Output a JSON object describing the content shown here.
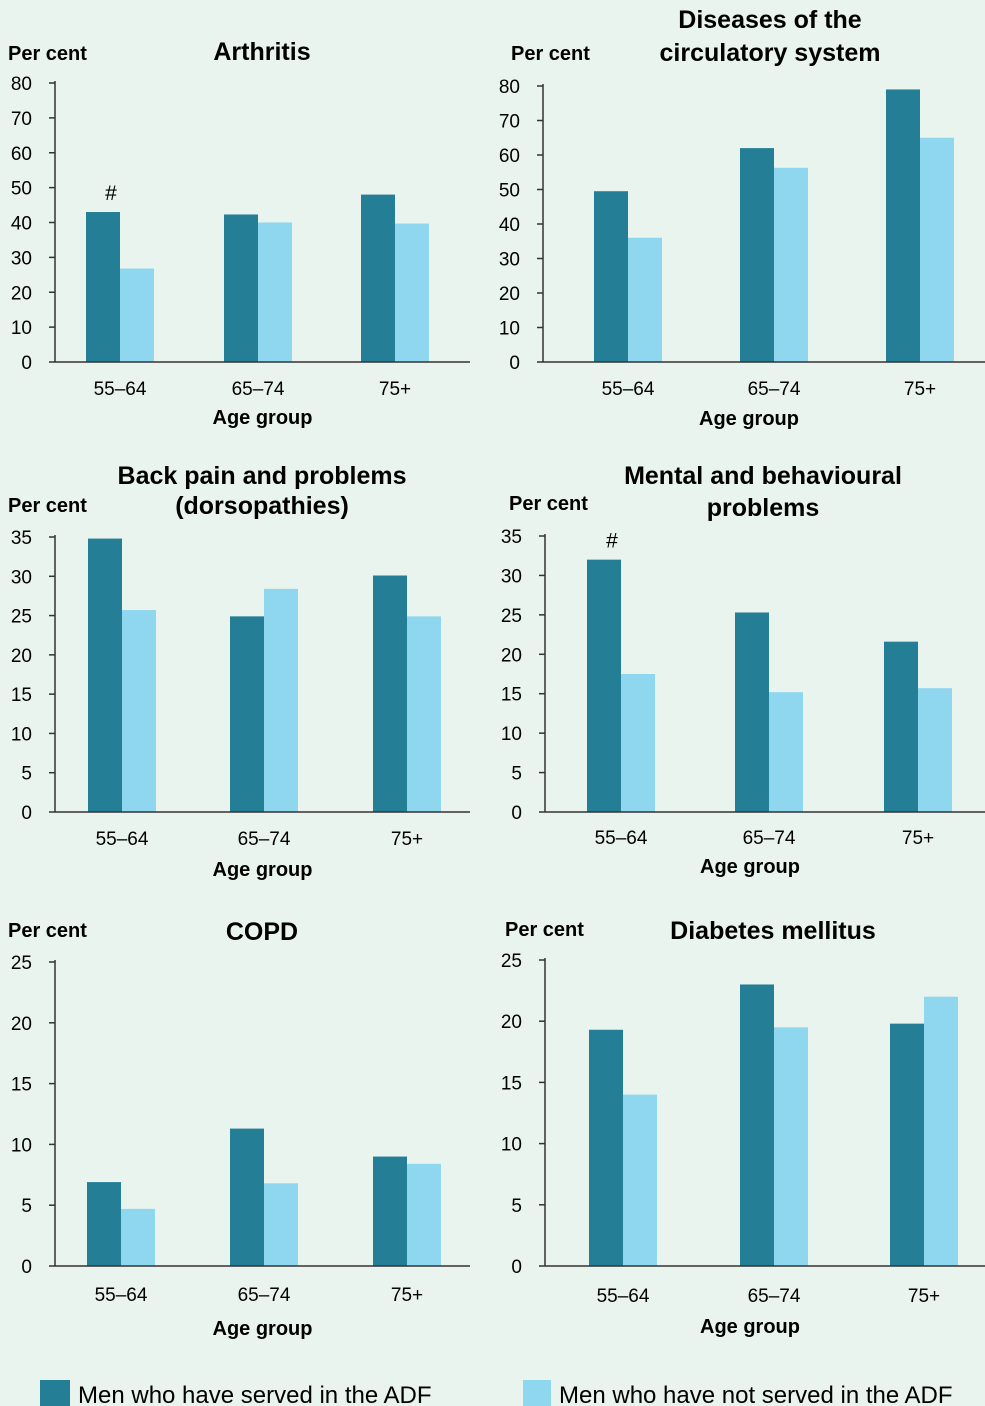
{
  "colors": {
    "served": "#237e96",
    "not_served": "#8fd7ee",
    "axis": "#333333"
  },
  "legend": {
    "served": "Men who have served in the ADF",
    "not_served": "Men who have not served in the ADF"
  },
  "chart_data": [
    {
      "type": "bar",
      "id": "arthritis",
      "title": [
        "Arthritis"
      ],
      "ylabel": "Per cent",
      "xlabel": "Age group",
      "categories": [
        "55–64",
        "65–74",
        "75+"
      ],
      "ylim": [
        0,
        80
      ],
      "yticks": [
        0,
        10,
        20,
        30,
        40,
        50,
        60,
        70,
        80
      ],
      "series": [
        {
          "name": "Men who have served in the ADF",
          "values": [
            43,
            42.3,
            48
          ]
        },
        {
          "name": "Men who have not served in the ADF",
          "values": [
            26.8,
            40,
            39.7
          ]
        }
      ],
      "annotations": [
        {
          "text": "#",
          "category": "55–64"
        }
      ]
    },
    {
      "type": "bar",
      "id": "circulatory",
      "title": [
        "Diseases of the",
        "circulatory system"
      ],
      "ylabel": "Per cent",
      "xlabel": "Age group",
      "categories": [
        "55–64",
        "65–74",
        "75+"
      ],
      "ylim": [
        0,
        80
      ],
      "yticks": [
        0,
        10,
        20,
        30,
        40,
        50,
        60,
        70,
        80
      ],
      "series": [
        {
          "name": "Men who have served in the ADF",
          "values": [
            49.5,
            62,
            79
          ]
        },
        {
          "name": "Men who have not served in the ADF",
          "values": [
            36,
            56.3,
            65
          ]
        }
      ],
      "annotations": []
    },
    {
      "type": "bar",
      "id": "back",
      "title": [
        "Back pain and problems",
        "(dorsopathies)"
      ],
      "ylabel": "Per cent",
      "xlabel": "Age group",
      "categories": [
        "55–64",
        "65–74",
        "75+"
      ],
      "ylim": [
        0,
        35
      ],
      "yticks": [
        0,
        5,
        10,
        15,
        20,
        25,
        30,
        35
      ],
      "series": [
        {
          "name": "Men who have served in the ADF",
          "values": [
            34.8,
            24.9,
            30.1
          ]
        },
        {
          "name": "Men who have not served in the ADF",
          "values": [
            25.7,
            28.4,
            24.9
          ]
        }
      ],
      "annotations": []
    },
    {
      "type": "bar",
      "id": "mental",
      "title": [
        "Mental and behavioural",
        "problems"
      ],
      "ylabel": "Per cent",
      "xlabel": "Age group",
      "categories": [
        "55–64",
        "65–74",
        "75+"
      ],
      "ylim": [
        0,
        35
      ],
      "yticks": [
        0,
        5,
        10,
        15,
        20,
        25,
        30,
        35
      ],
      "series": [
        {
          "name": "Men who have served in the ADF",
          "values": [
            32,
            25.3,
            21.6
          ]
        },
        {
          "name": "Men who have not served in the ADF",
          "values": [
            17.5,
            15.2,
            15.7
          ]
        }
      ],
      "annotations": [
        {
          "text": "#",
          "category": "55–64"
        }
      ]
    },
    {
      "type": "bar",
      "id": "copd",
      "title": [
        "COPD"
      ],
      "ylabel": "Per cent",
      "xlabel": "Age group",
      "categories": [
        "55–64",
        "65–74",
        "75+"
      ],
      "ylim": [
        0,
        25
      ],
      "yticks": [
        0,
        5,
        10,
        15,
        20,
        25
      ],
      "series": [
        {
          "name": "Men who have served in the ADF",
          "values": [
            6.9,
            11.3,
            9
          ]
        },
        {
          "name": "Men who have not served in the ADF",
          "values": [
            4.7,
            6.8,
            8.4
          ]
        }
      ],
      "annotations": []
    },
    {
      "type": "bar",
      "id": "diabetes",
      "title": [
        "Diabetes mellitus"
      ],
      "ylabel": "Per cent",
      "xlabel": "Age group",
      "categories": [
        "55–64",
        "65–74",
        "75+"
      ],
      "ylim": [
        0,
        25
      ],
      "yticks": [
        0,
        5,
        10,
        15,
        20,
        25
      ],
      "series": [
        {
          "name": "Men who have served in the ADF",
          "values": [
            19.3,
            23,
            19.8
          ]
        },
        {
          "name": "Men who have not served in the ADF",
          "values": [
            14,
            19.5,
            22
          ]
        }
      ],
      "annotations": []
    }
  ]
}
